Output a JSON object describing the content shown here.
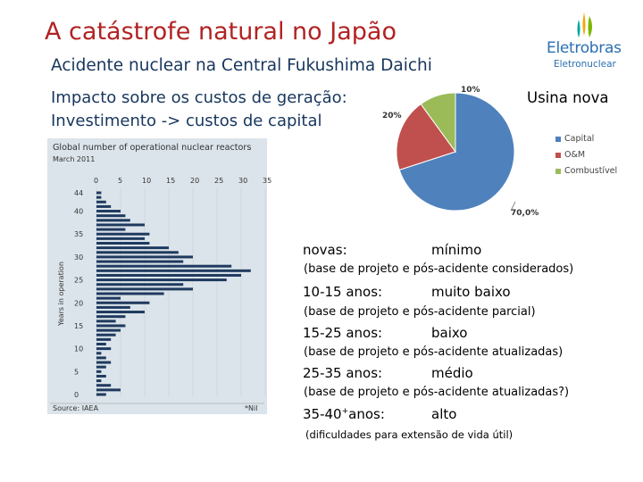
{
  "slide": {
    "title": "A catástrofe natural no Japão",
    "subtitle": "Acidente nuclear na Central Fukushima Daichi",
    "impact_line1": "Impacto sobre os custos de geração:",
    "impact_line2": "Investimento -> custos de capital",
    "usina_label": "Usina nova"
  },
  "logo": {
    "name": "Eletrobras",
    "subname": "Eletronuclear"
  },
  "pie": {
    "slices": [
      {
        "name": "Capital",
        "value": 70,
        "label": "70,0%",
        "color": "#4f81bd"
      },
      {
        "name": "O&M",
        "value": 20,
        "label": "20%",
        "color": "#c0504d"
      },
      {
        "name": "Combustível",
        "value": 10,
        "label": "10%",
        "color": "#9bbb59"
      }
    ]
  },
  "reactor_chart": {
    "title": "Global number of operational nuclear reactors",
    "date": "March 2011",
    "x_ticks": [
      "0",
      "5",
      "10",
      "15",
      "20",
      "25",
      "30",
      "35"
    ],
    "y_ticks": [
      "44",
      "40",
      "35",
      "30",
      "25",
      "20",
      "15",
      "10",
      "5",
      "0"
    ],
    "y_label": "Years in operation",
    "source": "Source: IAEA",
    "footnote": "*Nil",
    "bars": [
      {
        "age": 0,
        "value": 2
      },
      {
        "age": 1,
        "value": 5
      },
      {
        "age": 2,
        "value": 3
      },
      {
        "age": 3,
        "value": 1
      },
      {
        "age": 4,
        "value": 2
      },
      {
        "age": 5,
        "value": 1
      },
      {
        "age": 6,
        "value": 2
      },
      {
        "age": 7,
        "value": 3
      },
      {
        "age": 8,
        "value": 2
      },
      {
        "age": 9,
        "value": 1
      },
      {
        "age": 10,
        "value": 3
      },
      {
        "age": 11,
        "value": 2
      },
      {
        "age": 12,
        "value": 3
      },
      {
        "age": 13,
        "value": 4
      },
      {
        "age": 14,
        "value": 5
      },
      {
        "age": 15,
        "value": 6
      },
      {
        "age": 16,
        "value": 4
      },
      {
        "age": 17,
        "value": 6
      },
      {
        "age": 18,
        "value": 10
      },
      {
        "age": 19,
        "value": 7
      },
      {
        "age": 20,
        "value": 11
      },
      {
        "age": 21,
        "value": 5
      },
      {
        "age": 22,
        "value": 14
      },
      {
        "age": 23,
        "value": 20
      },
      {
        "age": 24,
        "value": 18
      },
      {
        "age": 25,
        "value": 27
      },
      {
        "age": 26,
        "value": 30
      },
      {
        "age": 27,
        "value": 32
      },
      {
        "age": 28,
        "value": 28
      },
      {
        "age": 29,
        "value": 18
      },
      {
        "age": 30,
        "value": 20
      },
      {
        "age": 31,
        "value": 17
      },
      {
        "age": 32,
        "value": 15
      },
      {
        "age": 33,
        "value": 11
      },
      {
        "age": 34,
        "value": 10
      },
      {
        "age": 35,
        "value": 11
      },
      {
        "age": 36,
        "value": 6
      },
      {
        "age": 37,
        "value": 10
      },
      {
        "age": 38,
        "value": 7
      },
      {
        "age": 39,
        "value": 6
      },
      {
        "age": 40,
        "value": 5
      },
      {
        "age": 41,
        "value": 3
      },
      {
        "age": 42,
        "value": 2
      },
      {
        "age": 43,
        "value": 1
      },
      {
        "age": 44,
        "value": 1
      }
    ]
  },
  "categories": [
    {
      "label": "novas:",
      "value": "mínimo",
      "note": "(base de projeto e pós-acidente considerados)"
    },
    {
      "label": "10-15 anos:",
      "value": "muito baixo",
      "note": "(base de projeto e pós-acidente parcial)"
    },
    {
      "label": "15-25 anos:",
      "value": "baixo",
      "note": "(base de projeto e pós-acidente atualizadas)"
    },
    {
      "label": "25-35 anos:",
      "value": "médio",
      "note": "(base de projeto e pós-acidente atualizadas?)"
    },
    {
      "label_main": "35-40",
      "label_sup": "+",
      "label_tail": "anos:",
      "value": "alto",
      "note": "(dificuldades para extensão de vida útil)"
    }
  ]
}
